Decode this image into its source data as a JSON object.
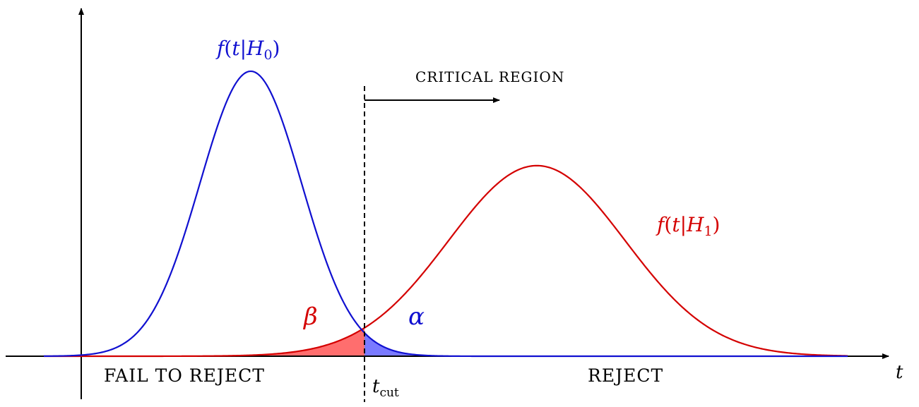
{
  "diagram": {
    "axis_label_t": "t",
    "h0_label": {
      "f": "f",
      "open": "(",
      "t": "t",
      "bar": "|",
      "H": "H",
      "sub": "0",
      "close": ")"
    },
    "h1_label": {
      "f": "f",
      "open": "(",
      "t": "t",
      "bar": "|",
      "H": "H",
      "sub": "1",
      "close": ")"
    },
    "critical_region": "CRITICAL REGION",
    "fail_to_reject": "FAIL TO REJECT",
    "reject": "REJECT",
    "beta": "β",
    "alpha": "α",
    "tcut": {
      "t": "t",
      "sub": "cut"
    }
  },
  "colors": {
    "h0_curve": "#1010d0",
    "h1_curve": "#d40000",
    "alpha_fill": "#7a7aff",
    "beta_fill": "#ff6e6e",
    "axes": "#000000"
  },
  "curves": {
    "h0": {
      "mean": 355,
      "sigma": 72,
      "peak": 0.8
    },
    "h1": {
      "mean": 760,
      "sigma": 125,
      "peak": 0.535
    },
    "t_cut": 516
  }
}
